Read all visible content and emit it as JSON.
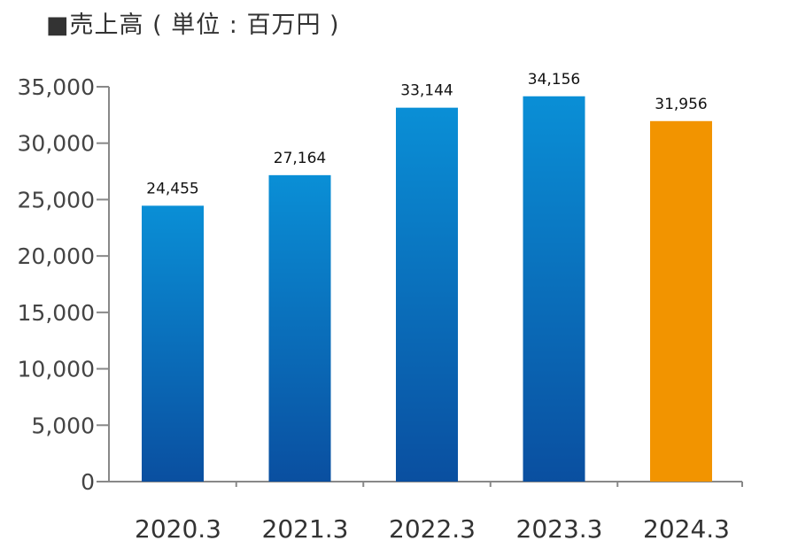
{
  "title": "■売上高 ( 単位 : 百万円 )",
  "chart_data": {
    "type": "bar",
    "title": "■売上高 ( 単位 : 百万円 )",
    "categories": [
      "2020.3",
      "2021.3",
      "2022.3",
      "2023.3",
      "2024.3"
    ],
    "values": [
      24455,
      27164,
      33144,
      34156,
      31956
    ],
    "data_labels": [
      "24,455",
      "27,164",
      "33,144",
      "34,156",
      "31,956"
    ],
    "yticks": [
      0,
      5000,
      10000,
      15000,
      20000,
      25000,
      30000,
      35000
    ],
    "ytick_labels": [
      "0",
      "5,000",
      "10,000",
      "15,000",
      "20,000",
      "25,000",
      "30,000",
      "35,000"
    ],
    "ylim": [
      0,
      35000
    ],
    "grid": false,
    "colors": {
      "bar_top": "#0a8fd6",
      "bar_bottom": "#0a4fa0",
      "highlight": "#f29400",
      "axis": "#888888"
    },
    "highlight_index": 4
  }
}
